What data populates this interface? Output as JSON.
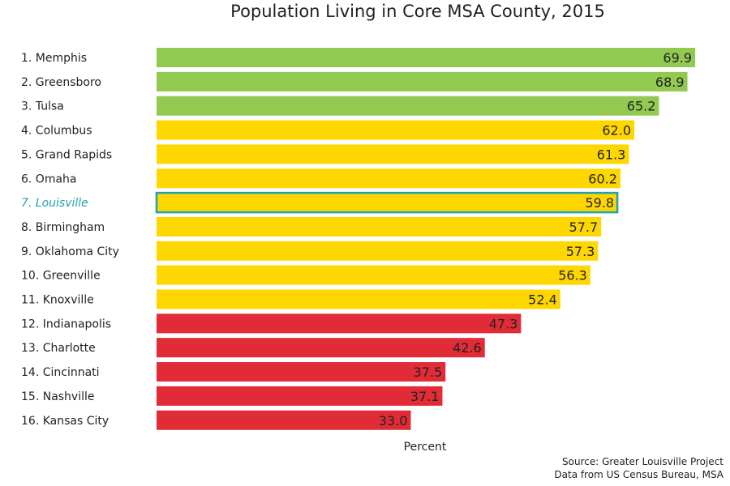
{
  "chart_data": {
    "type": "bar",
    "orientation": "horizontal",
    "title": "Population Living in Core MSA County, 2015",
    "xlabel": "Percent",
    "ylabel": "",
    "xlim": [
      0,
      70
    ],
    "grid": false,
    "legend": "none",
    "categories": [
      "1. Memphis",
      "2. Greensboro",
      "3. Tulsa",
      "4. Columbus",
      "5. Grand Rapids",
      "6. Omaha",
      "7. Louisville",
      "8. Birmingham",
      "9. Oklahoma City",
      "10. Greenville",
      "11. Knoxville",
      "12. Indianapolis",
      "13. Charlotte",
      "14. Cincinnati",
      "15. Nashville",
      "16. Kansas City"
    ],
    "values": [
      69.9,
      68.9,
      65.2,
      62.0,
      61.3,
      60.2,
      59.8,
      57.7,
      57.3,
      56.3,
      52.4,
      47.3,
      42.6,
      37.5,
      37.1,
      33.0
    ],
    "value_labels": [
      "69.9",
      "68.9",
      "65.2",
      "62.0",
      "61.3",
      "60.2",
      "59.8",
      "57.7",
      "57.3",
      "56.3",
      "52.4",
      "47.3",
      "42.6",
      "37.5",
      "37.1",
      "33.0"
    ],
    "tiers": [
      "green",
      "green",
      "green",
      "yellow",
      "yellow",
      "yellow",
      "yellow",
      "yellow",
      "yellow",
      "yellow",
      "yellow",
      "red",
      "red",
      "red",
      "red",
      "red"
    ],
    "highlight": "7. Louisville",
    "colors": {
      "green": "#92c950",
      "yellow": "#fed600",
      "red": "#e12b36",
      "highlight": "#1fa2b3",
      "text": "#222222"
    }
  },
  "source": {
    "line1": "Source: Greater Louisville Project",
    "line2": "Data from US Census Bureau, MSA"
  }
}
